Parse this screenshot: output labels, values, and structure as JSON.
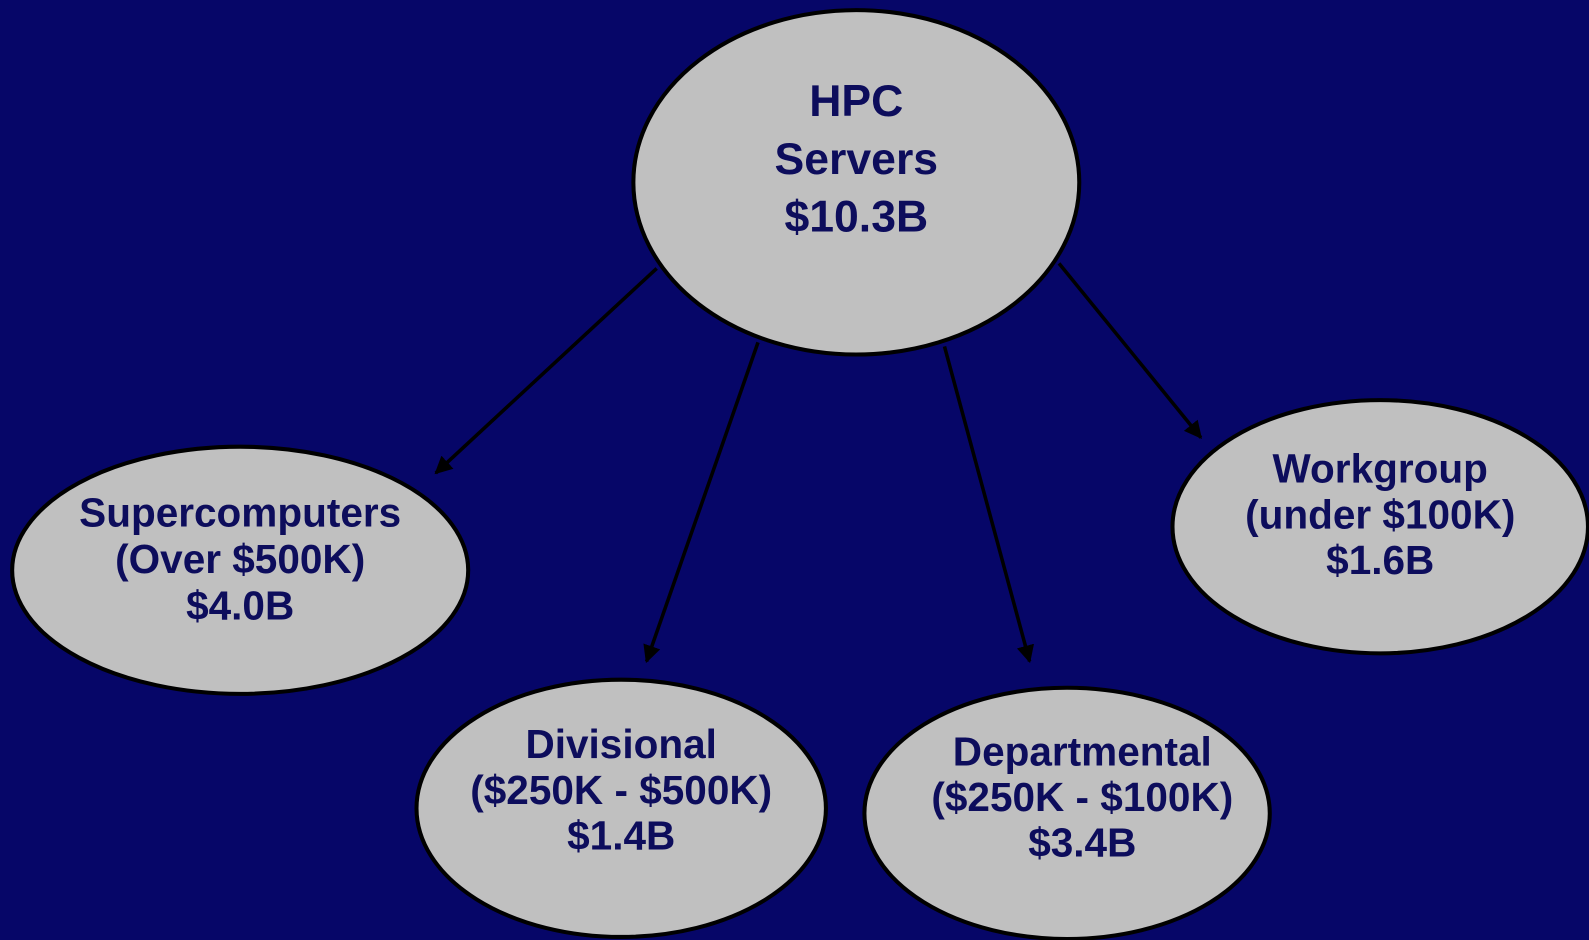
{
  "nodes": [
    {
      "lines": [
        "HPC",
        "Servers",
        "$10.3B"
      ]
    },
    {
      "lines": [
        "Supercomputers",
        "(Over $500K)",
        "$4.0B"
      ]
    },
    {
      "lines": [
        "Divisional",
        "($250K - $500K)",
        "$1.4B"
      ]
    },
    {
      "lines": [
        "Departmental",
        "($250K - $100K)",
        "$3.4B"
      ]
    },
    {
      "lines": [
        "Workgroup",
        "(under $100K)",
        "$1.6B"
      ]
    }
  ]
}
